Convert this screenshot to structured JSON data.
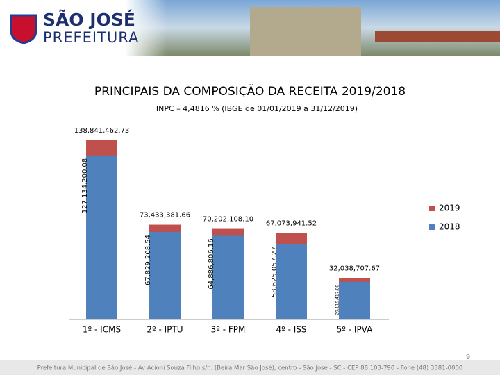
{
  "header": {
    "logo_title": "SÃO JOSÉ",
    "logo_subtitle": "PREFEITURA"
  },
  "chart_data": {
    "type": "bar",
    "title": "PRINCIPAIS DA COMPOSIÇÃO DA RECEITA  2019/2018",
    "subtitle": "INPC – 4,4816 % (IBGE de 01/01/2019  a  31/12/2019)",
    "categories": [
      "1º - ICMS",
      "2º - IPTU",
      "3º - FPM",
      "4º - ISS",
      "5º - IPVA"
    ],
    "series": [
      {
        "name": "2019",
        "color": "#c0504d",
        "values": [
          138841462.73,
          73433381.66,
          70202108.1,
          67073941.52,
          32038707.67
        ],
        "value_labels": [
          "138,841,462.73",
          "73,433,381.66",
          "70,202,108.10",
          "67,073,941.52",
          "32,038,707.67"
        ]
      },
      {
        "name": "2018",
        "color": "#4f81bd",
        "values": [
          127134200.08,
          67829208.54,
          64886806.16,
          58625057.27,
          29119417.8
        ],
        "value_labels": [
          "127,134,200.08",
          "67,829,208.54",
          "64,886,806.16",
          "58,625,057.27",
          "29,119,417.80"
        ]
      }
    ],
    "legend": "right"
  },
  "footer": {
    "address": "Prefeitura Municipal de São José - Av Acioni Souza Filho s/n. (Beira Mar São José), centro - São José - SC - CEP 88 103-790 - Fone (48) 3381-0000",
    "page": "9"
  }
}
